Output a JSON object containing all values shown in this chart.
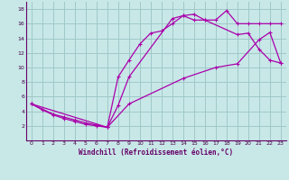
{
  "title": "",
  "xlabel": "Windchill (Refroidissement éolien,°C)",
  "ylabel": "",
  "bg_color": "#c8e8e8",
  "grid_color": "#a0c8c8",
  "line_color": "#aa00aa",
  "xlim": [
    -0.5,
    23.5
  ],
  "ylim": [
    0,
    19
  ],
  "xticks": [
    0,
    1,
    2,
    3,
    4,
    5,
    6,
    7,
    8,
    9,
    10,
    11,
    12,
    13,
    14,
    15,
    16,
    17,
    18,
    19,
    20,
    21,
    22,
    23
  ],
  "yticks": [
    2,
    4,
    6,
    8,
    10,
    12,
    14,
    16,
    18
  ],
  "line1_x": [
    0,
    1,
    2,
    3,
    4,
    5,
    6,
    7,
    8,
    9,
    10,
    11,
    12,
    13,
    14,
    15,
    16,
    17,
    18,
    19,
    20,
    21,
    22,
    23
  ],
  "line1_y": [
    5.0,
    4.2,
    3.5,
    3.0,
    2.6,
    2.2,
    2.0,
    1.8,
    8.7,
    11.0,
    13.2,
    14.7,
    15.0,
    16.0,
    17.1,
    17.3,
    16.5,
    16.5,
    17.8,
    16.0,
    16.0,
    16.0,
    16.0,
    16.0
  ],
  "line2_x": [
    0,
    2,
    3,
    4,
    5,
    6,
    7,
    8,
    9,
    13,
    14,
    15,
    16,
    19,
    20,
    21,
    22,
    23
  ],
  "line2_y": [
    5.0,
    3.6,
    3.2,
    2.8,
    2.4,
    2.1,
    1.8,
    4.8,
    8.7,
    16.7,
    17.1,
    16.5,
    16.5,
    14.5,
    14.7,
    12.5,
    11.0,
    10.6
  ],
  "line3_x": [
    0,
    7,
    9,
    14,
    17,
    19,
    21,
    22,
    23
  ],
  "line3_y": [
    5.0,
    1.8,
    5.0,
    8.5,
    10.0,
    10.5,
    13.8,
    14.8,
    10.6
  ]
}
